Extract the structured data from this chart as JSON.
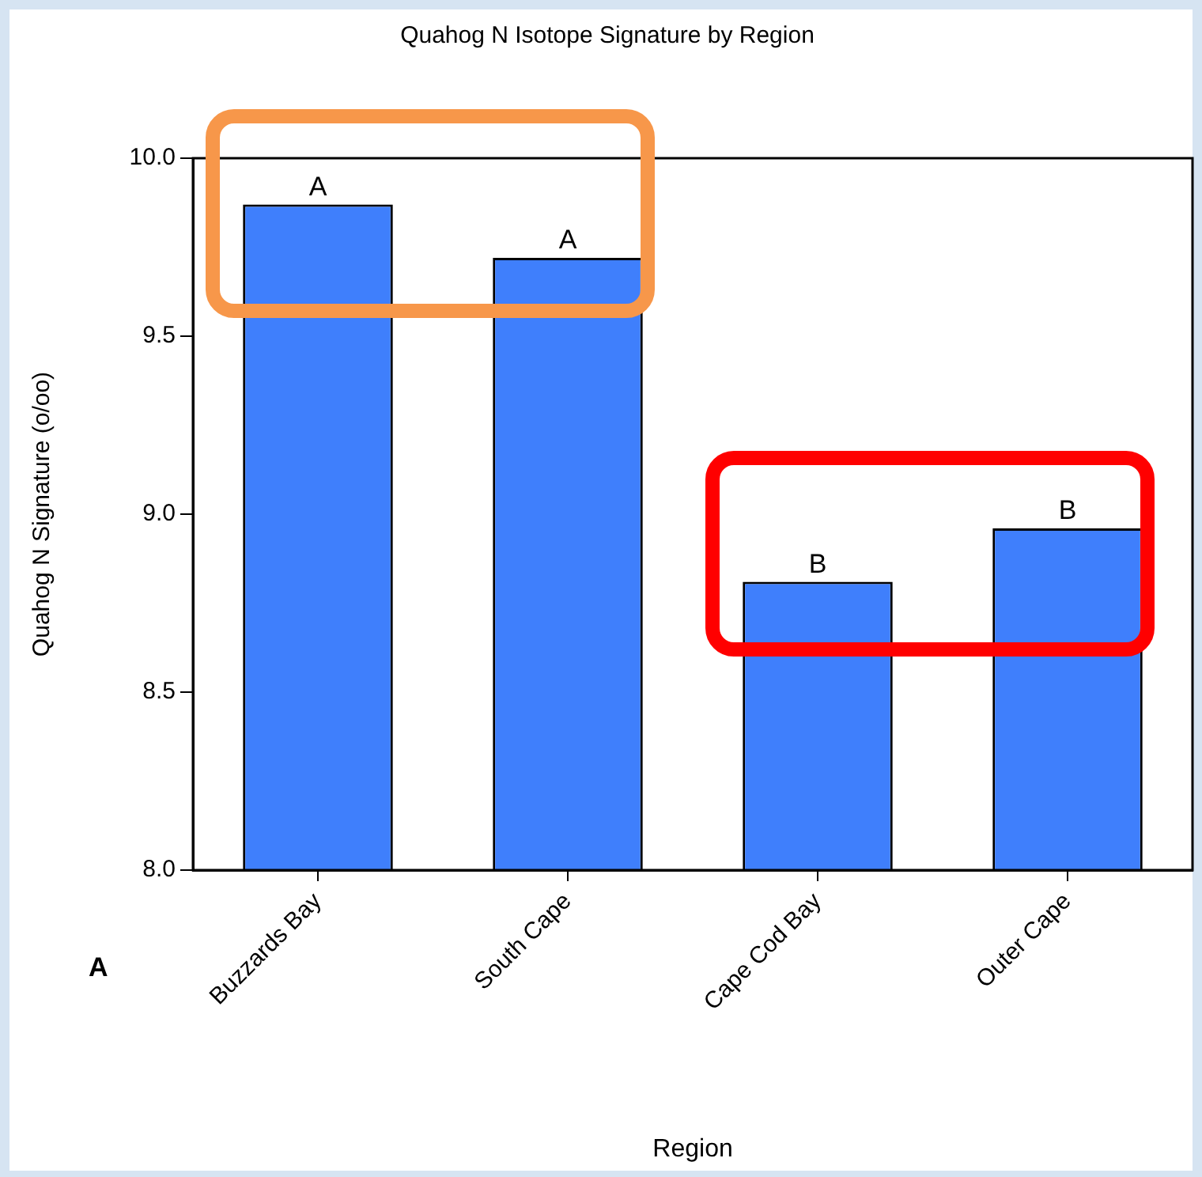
{
  "chart_data": {
    "type": "bar",
    "title": "Quahog N Isotope Signature by Region",
    "xlabel": "Region",
    "ylabel": "Quahog N Signature (o/oo)",
    "categories": [
      "Buzzards Bay",
      "South Cape",
      "Cape Cod Bay",
      "Outer Cape"
    ],
    "values": [
      9.87,
      9.72,
      8.81,
      8.96
    ],
    "color": "#3f7ffc",
    "ylim": [
      8,
      10
    ],
    "yticks": [
      {
        "value": 8,
        "label": "8.0"
      },
      {
        "value": 8.5,
        "label": "8.5"
      },
      {
        "value": 9,
        "label": "9.0"
      },
      {
        "value": 9.5,
        "label": "9.5"
      },
      {
        "value": 10,
        "label": "10.0"
      }
    ],
    "legend": false,
    "annotations": [
      {
        "text": "A",
        "x": "Buzzards Bay",
        "y": 9.87
      },
      {
        "text": "A",
        "x": "South Cape",
        "y": 9.72
      },
      {
        "text": "B",
        "x": "Cape Cod Bay",
        "y": 8.81
      },
      {
        "text": "B",
        "x": "Outer Cape",
        "y": 8.96
      },
      "A"
    ]
  }
}
